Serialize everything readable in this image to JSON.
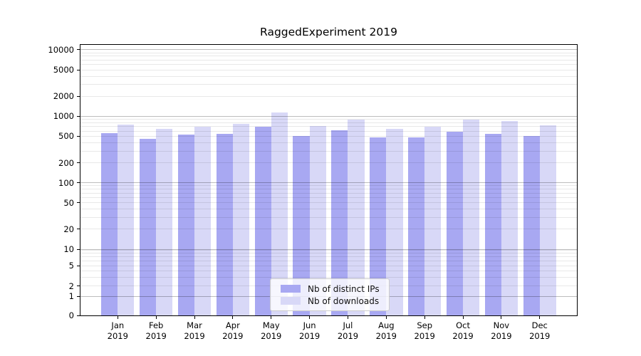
{
  "title": "RaggedExperiment 2019",
  "chart_data": {
    "type": "bar",
    "title": "RaggedExperiment 2019",
    "categories": [
      "Jan",
      "Feb",
      "Mar",
      "Apr",
      "May",
      "Jun",
      "Jul",
      "Aug",
      "Sep",
      "Oct",
      "Nov",
      "Dec"
    ],
    "category_year": "2019",
    "series": [
      {
        "name": "Nb of distinct IPs",
        "color": "#a8a8f2",
        "values": [
          560,
          460,
          530,
          540,
          700,
          510,
          620,
          480,
          480,
          590,
          550,
          510
        ]
      },
      {
        "name": "Nb of downloads",
        "color": "#d8d8f7",
        "values": [
          750,
          640,
          700,
          760,
          1150,
          720,
          880,
          650,
          690,
          900,
          850,
          740
        ]
      }
    ],
    "xlabel": "",
    "ylabel": "",
    "yscale": "symlog",
    "y_ticks": [
      0,
      1,
      2,
      5,
      10,
      20,
      50,
      100,
      200,
      500,
      1000,
      2000,
      5000,
      10000
    ],
    "ylim": [
      0,
      12000
    ],
    "grid": "horizontal",
    "grid_above_bars": true,
    "legend_position": "lower center"
  },
  "colors": {
    "background": "#ffffff",
    "spine": "#000000",
    "grid_minor": "#e8e8e8",
    "grid_major": "#bfbfbf",
    "text": "#000000"
  }
}
